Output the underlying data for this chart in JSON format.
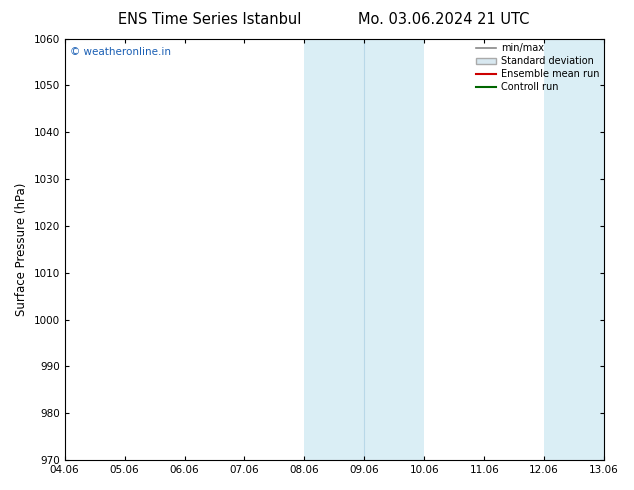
{
  "title_left": "ENS Time Series Istanbul",
  "title_right": "Mo. 03.06.2024 21 UTC",
  "ylabel": "Surface Pressure (hPa)",
  "ylim": [
    970,
    1060
  ],
  "yticks": [
    970,
    980,
    990,
    1000,
    1010,
    1020,
    1030,
    1040,
    1050,
    1060
  ],
  "xtick_labels": [
    "04.06",
    "05.06",
    "06.06",
    "07.06",
    "08.06",
    "09.06",
    "10.06",
    "11.06",
    "12.06",
    "13.06"
  ],
  "shaded_bands": [
    {
      "xmin": 4,
      "xmax": 5,
      "color": "#daeef5"
    },
    {
      "xmin": 5,
      "xmax": 6,
      "color": "#daeef5"
    },
    {
      "xmin": 8,
      "xmax": 9,
      "color": "#daeef5"
    }
  ],
  "band_dividers": [
    5
  ],
  "watermark": "© weatheronline.in",
  "legend_entries": [
    {
      "label": "min/max",
      "type": "line",
      "color": "#888888",
      "lw": 1.2
    },
    {
      "label": "Standard deviation",
      "type": "patch",
      "facecolor": "#d8e8f0",
      "edgecolor": "#aaaaaa"
    },
    {
      "label": "Ensemble mean run",
      "type": "line",
      "color": "#cc0000",
      "lw": 1.5
    },
    {
      "label": "Controll run",
      "type": "line",
      "color": "#006600",
      "lw": 1.5
    }
  ],
  "bg_color": "#ffffff",
  "plot_bg_color": "#ffffff",
  "border_color": "#000000",
  "title_fontsize": 10.5,
  "tick_fontsize": 7.5,
  "ylabel_fontsize": 8.5,
  "watermark_color": "#1a5fb4"
}
